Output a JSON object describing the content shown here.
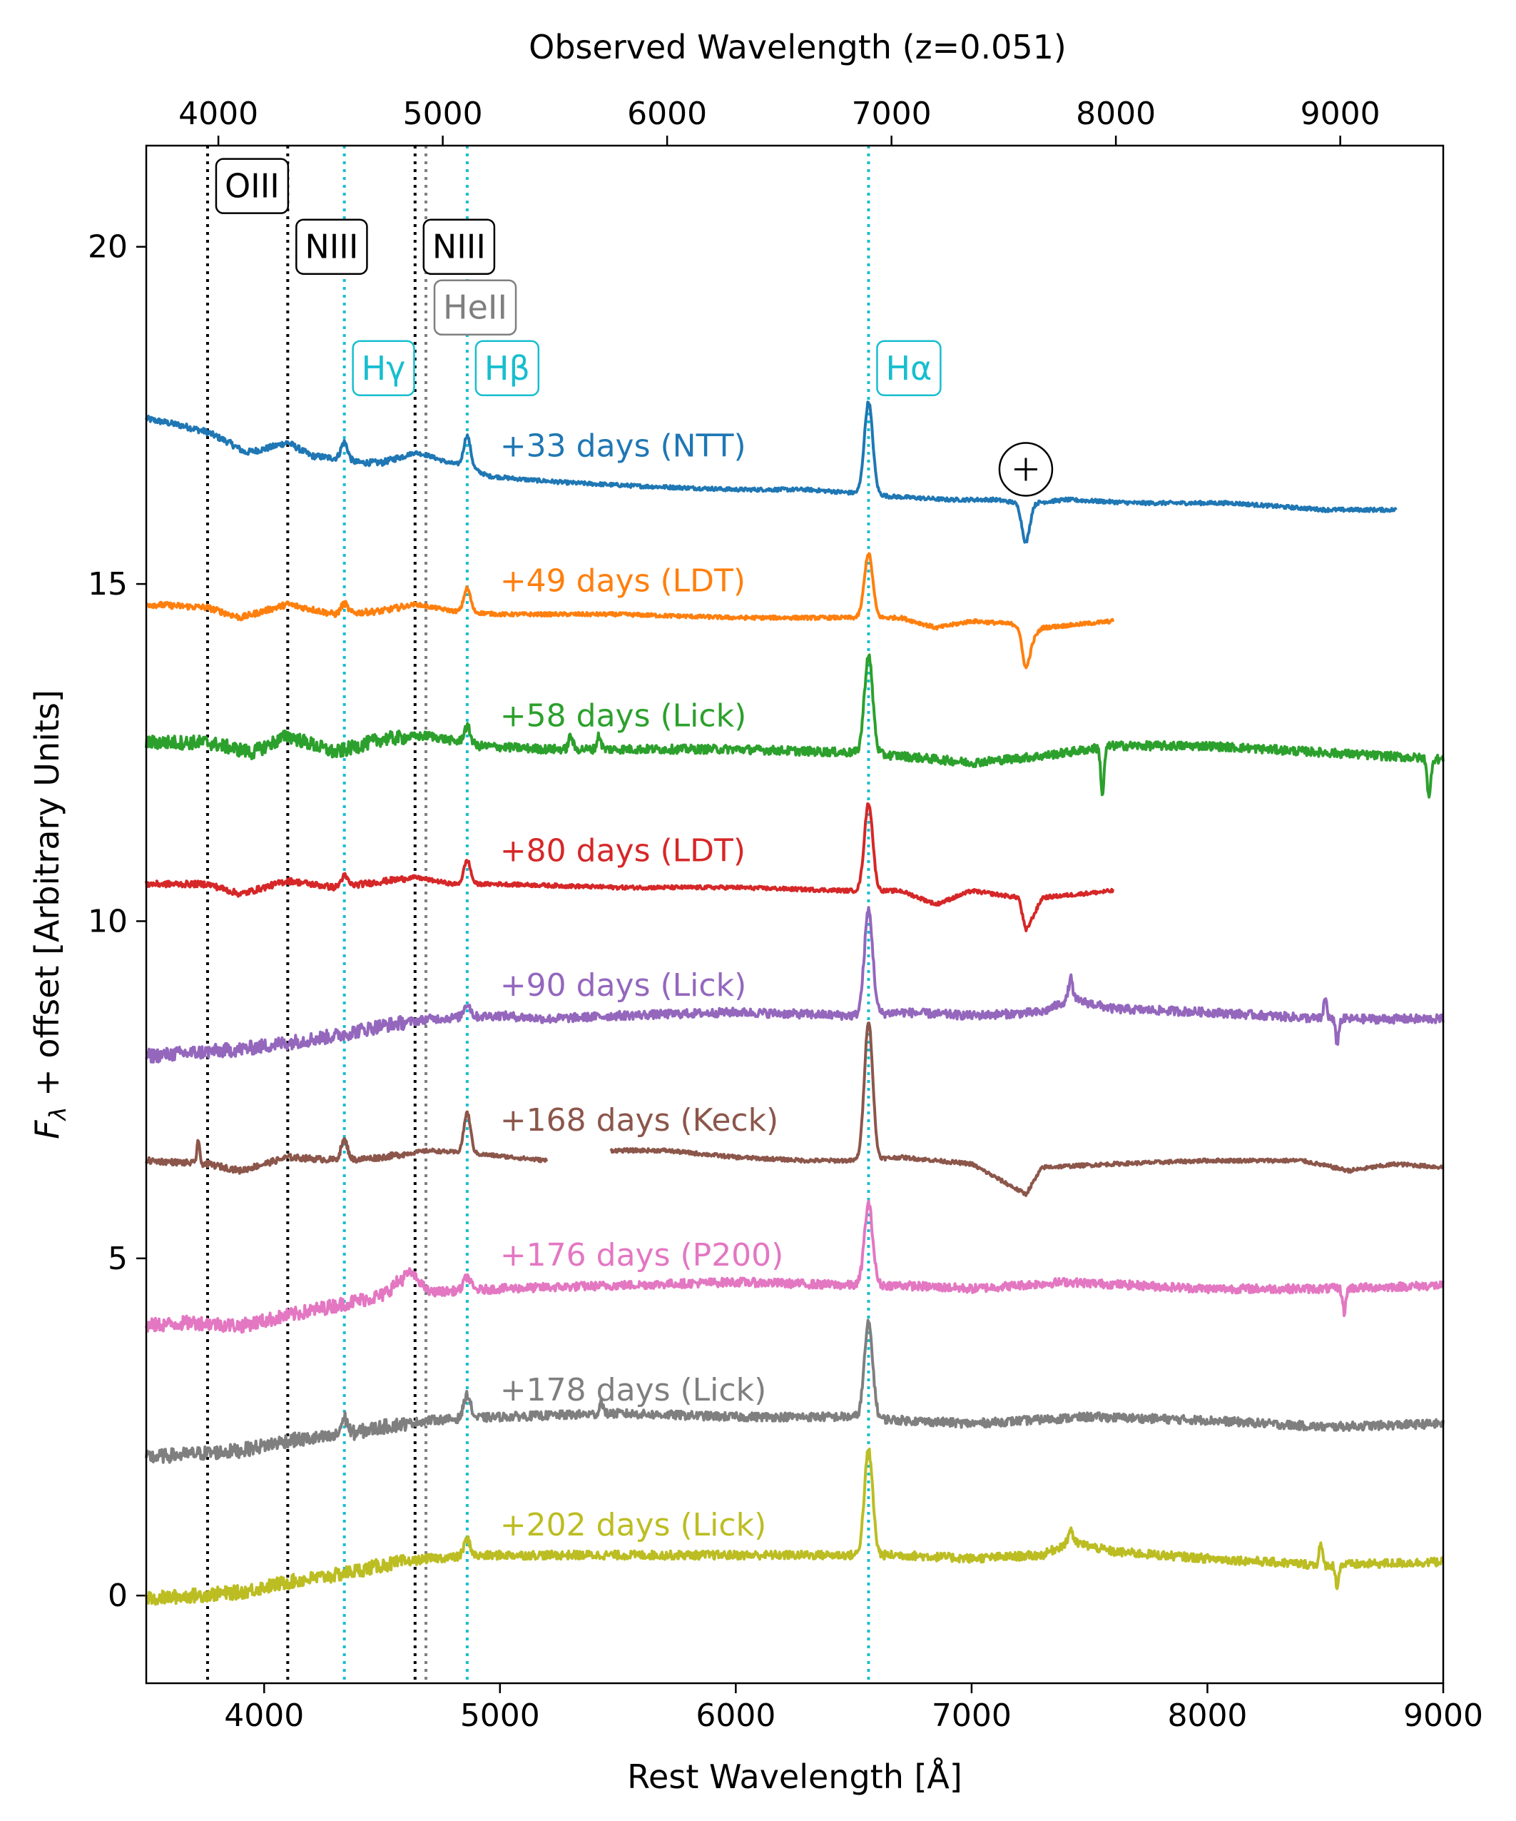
{
  "chart_data": {
    "type": "line",
    "xlabel": "Rest Wavelength [Å]",
    "ylabel": "F_λ + offset [Arbitrary Units]",
    "ylabel_main": "F",
    "ylabel_sub": "λ",
    "ylabel_rest": " + offset [Arbitrary Units]",
    "top_xlabel": "Observed Wavelength (z=0.051)",
    "redshift": 0.051,
    "xlim": [
      3500,
      9000
    ],
    "ylim": [
      -1.3,
      21.5
    ],
    "x_ticks": [
      4000,
      5000,
      6000,
      7000,
      8000,
      9000
    ],
    "y_ticks": [
      0,
      5,
      10,
      15,
      20
    ],
    "top_x_ticks": [
      4000,
      5000,
      6000,
      7000,
      8000,
      9000
    ],
    "grid": false,
    "telluric_marker": {
      "symbol": "⊕",
      "x": 7230,
      "y": 16.7
    },
    "line_markers": [
      {
        "name": "OIII",
        "x": 3760,
        "color": "#000000",
        "label_y": 20.9
      },
      {
        "name": "NIII",
        "x": 4100,
        "color": "#000000",
        "label_y": 20.0
      },
      {
        "name": "Hγ",
        "x": 4340,
        "color": "#17becf",
        "label_y": 18.2
      },
      {
        "name": "NIII",
        "x": 4640,
        "color": "#000000",
        "label_y": 20.0
      },
      {
        "name": "HeII",
        "x": 4686,
        "color": "#7f7f7f",
        "label_y": 19.1
      },
      {
        "name": "Hβ",
        "x": 4861,
        "color": "#17becf",
        "label_y": 18.2
      },
      {
        "name": "Hα",
        "x": 6563,
        "color": "#17becf",
        "label_y": 18.2
      }
    ],
    "series": [
      {
        "name": "+33 days (NTT)",
        "color": "#1f77b4",
        "label_x": 5000,
        "label_y": 17.05,
        "x": [
          3500,
          3650,
          3760,
          3850,
          3920,
          4000,
          4100,
          4200,
          4340,
          4400,
          4500,
          4640,
          4700,
          4780,
          4861,
          4950,
          5100,
          5300,
          5600,
          6000,
          6300,
          6500,
          6563,
          6650,
          6900,
          7100,
          7200,
          7230,
          7260,
          7400,
          7700,
          8100,
          8500,
          8800
        ],
        "y": [
          17.45,
          17.35,
          17.25,
          17.1,
          16.95,
          17.0,
          17.1,
          16.9,
          16.85,
          16.8,
          16.8,
          16.95,
          16.9,
          16.8,
          16.75,
          16.6,
          16.55,
          16.5,
          16.45,
          16.4,
          16.4,
          16.35,
          16.35,
          16.3,
          16.25,
          16.25,
          16.2,
          16.0,
          16.2,
          16.25,
          16.2,
          16.2,
          16.1,
          16.1
        ],
        "lines": [
          [
            4340,
            0.25,
            20
          ],
          [
            4861,
            0.45,
            20
          ],
          [
            6563,
            1.35,
            25
          ],
          [
            7230,
            -0.4,
            25
          ]
        ]
      },
      {
        "name": "+49 days (LDT)",
        "color": "#ff7f0e",
        "label_x": 5000,
        "label_y": 15.05,
        "x": [
          3500,
          3760,
          3900,
          4100,
          4300,
          4500,
          4640,
          4800,
          5000,
          5500,
          6000,
          6500,
          6700,
          6850,
          7000,
          7200,
          7230,
          7300,
          7600
        ],
        "y": [
          14.7,
          14.65,
          14.5,
          14.7,
          14.55,
          14.6,
          14.7,
          14.6,
          14.55,
          14.55,
          14.5,
          14.5,
          14.5,
          14.35,
          14.45,
          14.4,
          14.1,
          14.35,
          14.45
        ],
        "lines": [
          [
            4340,
            0.15,
            20
          ],
          [
            4861,
            0.35,
            20
          ],
          [
            6563,
            0.95,
            25
          ],
          [
            7230,
            -0.35,
            25
          ]
        ]
      },
      {
        "name": "+58 days (Lick)",
        "color": "#2ca02c",
        "label_x": 5000,
        "label_y": 13.05,
        "x": [
          3500,
          3760,
          3950,
          4100,
          4300,
          4500,
          4700,
          4900,
          5200,
          5500,
          6000,
          6500,
          6700,
          7000,
          7300,
          7600,
          8000,
          8500,
          9000
        ],
        "y": [
          12.65,
          12.65,
          12.5,
          12.75,
          12.5,
          12.7,
          12.75,
          12.6,
          12.55,
          12.55,
          12.55,
          12.5,
          12.45,
          12.35,
          12.45,
          12.6,
          12.6,
          12.5,
          12.4
        ],
        "lines": [
          [
            4861,
            0.25,
            20
          ],
          [
            5300,
            0.2,
            12
          ],
          [
            5420,
            0.2,
            12
          ],
          [
            6563,
            1.45,
            25
          ],
          [
            7555,
            -0.7,
            10
          ],
          [
            8940,
            -0.6,
            10
          ]
        ]
      },
      {
        "name": "+80 days (LDT)",
        "color": "#d62728",
        "label_x": 5000,
        "label_y": 11.05,
        "x": [
          3500,
          3760,
          3900,
          4100,
          4300,
          4640,
          4800,
          5000,
          5500,
          6000,
          6500,
          6700,
          6850,
          7000,
          7200,
          7230,
          7300,
          7600
        ],
        "y": [
          10.55,
          10.55,
          10.4,
          10.6,
          10.5,
          10.65,
          10.55,
          10.55,
          10.5,
          10.5,
          10.45,
          10.45,
          10.25,
          10.45,
          10.35,
          9.85,
          10.35,
          10.45
        ],
        "lines": [
          [
            4340,
            0.15,
            20
          ],
          [
            4861,
            0.35,
            20
          ],
          [
            6563,
            1.3,
            25
          ]
        ]
      },
      {
        "name": "+90 days (Lick)",
        "color": "#9467bd",
        "label_x": 5000,
        "label_y": 9.05,
        "x": [
          3500,
          3700,
          3900,
          4100,
          4300,
          4500,
          4700,
          5000,
          5200,
          5500,
          6000,
          6500,
          6700,
          7000,
          7300,
          7420,
          7600,
          8000,
          8500,
          9000
        ],
        "y": [
          8.0,
          8.05,
          8.1,
          8.2,
          8.3,
          8.45,
          8.55,
          8.6,
          8.55,
          8.6,
          8.65,
          8.6,
          8.65,
          8.6,
          8.65,
          8.85,
          8.7,
          8.65,
          8.55,
          8.55
        ],
        "lines": [
          [
            4861,
            0.2,
            20
          ],
          [
            6563,
            1.55,
            25
          ],
          [
            7420,
            0.3,
            12
          ],
          [
            8500,
            0.3,
            10
          ],
          [
            8550,
            -0.35,
            10
          ]
        ]
      },
      {
        "name": "+168 days (Keck)",
        "color": "#8c564b",
        "label_x": 5000,
        "label_y": 7.05,
        "x": [
          3500,
          3760,
          3900,
          4100,
          4340,
          4500,
          4700,
          4900,
          5200,
          null,
          5470,
          5700,
          6000,
          6300,
          6500,
          6700,
          7000,
          7230,
          7300,
          7600,
          8000,
          8400,
          8600,
          8800,
          9000
        ],
        "y": [
          6.45,
          6.4,
          6.3,
          6.5,
          6.45,
          6.5,
          6.6,
          6.55,
          6.45,
          null,
          6.6,
          6.6,
          6.5,
          6.45,
          6.45,
          6.5,
          6.4,
          5.95,
          6.35,
          6.4,
          6.45,
          6.45,
          6.3,
          6.4,
          6.35
        ],
        "lines": [
          [
            3720,
            0.35,
            8
          ],
          [
            4340,
            0.3,
            20
          ],
          [
            4861,
            0.6,
            20
          ],
          [
            6563,
            2.05,
            25
          ]
        ]
      },
      {
        "name": "+176 days (P200)",
        "color": "#e377c2",
        "label_x": 5000,
        "label_y": 5.05,
        "x": [
          3500,
          3700,
          3900,
          4100,
          4300,
          4500,
          4620,
          4700,
          5000,
          5500,
          6000,
          6500,
          6700,
          7000,
          7400,
          7700,
          8000,
          8500,
          9000
        ],
        "y": [
          4.0,
          4.05,
          4.0,
          4.15,
          4.3,
          4.45,
          4.8,
          4.5,
          4.55,
          4.6,
          4.65,
          4.6,
          4.6,
          4.55,
          4.65,
          4.6,
          4.55,
          4.55,
          4.6
        ],
        "lines": [
          [
            4861,
            0.2,
            20
          ],
          [
            6563,
            1.2,
            25
          ],
          [
            8580,
            -0.35,
            10
          ]
        ]
      },
      {
        "name": "+178 days (Lick)",
        "color": "#7f7f7f",
        "label_x": 5000,
        "label_y": 3.05,
        "x": [
          3500,
          3700,
          3900,
          4100,
          4300,
          4500,
          4700,
          5000,
          5500,
          6000,
          6500,
          6700,
          7000,
          7500,
          8000,
          8500,
          9000
        ],
        "y": [
          2.05,
          2.1,
          2.15,
          2.3,
          2.35,
          2.5,
          2.6,
          2.65,
          2.7,
          2.65,
          2.65,
          2.6,
          2.55,
          2.65,
          2.6,
          2.5,
          2.55
        ],
        "lines": [
          [
            4340,
            0.25,
            20
          ],
          [
            4861,
            0.35,
            20
          ],
          [
            5430,
            0.2,
            10
          ],
          [
            6563,
            1.4,
            25
          ]
        ]
      },
      {
        "name": "+202 days (Lick)",
        "color": "#bcbd22",
        "label_x": 5000,
        "label_y": 1.05,
        "x": [
          3500,
          3700,
          3900,
          4100,
          4300,
          4500,
          4700,
          5000,
          5500,
          6000,
          6500,
          6700,
          7000,
          7300,
          7420,
          7600,
          8000,
          8500,
          9000
        ],
        "y": [
          -0.05,
          0.0,
          0.05,
          0.2,
          0.3,
          0.45,
          0.55,
          0.6,
          0.6,
          0.6,
          0.6,
          0.6,
          0.55,
          0.6,
          0.8,
          0.65,
          0.55,
          0.45,
          0.5
        ],
        "lines": [
          [
            4861,
            0.25,
            20
          ],
          [
            6563,
            1.55,
            25
          ],
          [
            7420,
            0.2,
            12
          ],
          [
            8480,
            0.3,
            10
          ],
          [
            8550,
            -0.3,
            10
          ]
        ]
      }
    ]
  }
}
